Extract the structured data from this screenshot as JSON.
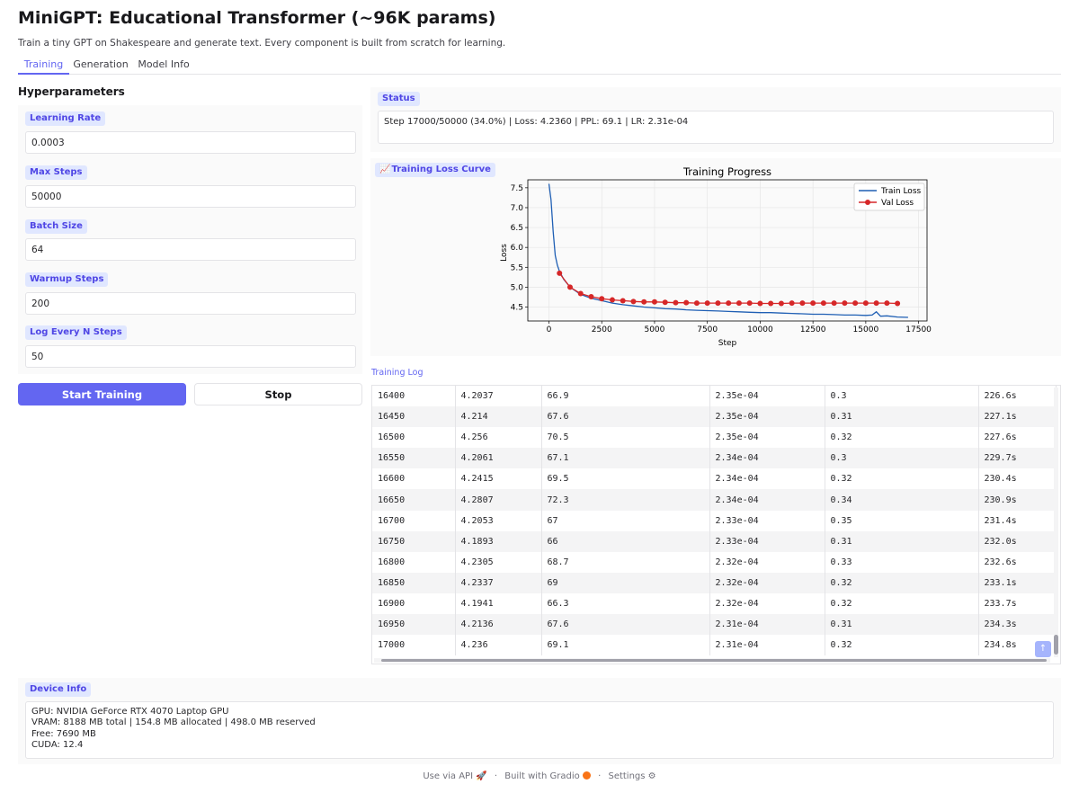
{
  "app": {
    "title": "MiniGPT: Educational Transformer (~96K params)",
    "subtitle": "Train a tiny GPT on Shakespeare and generate text. Every component is built from scratch for learning."
  },
  "tabs": [
    {
      "label": "Training",
      "active": true
    },
    {
      "label": "Generation",
      "active": false
    },
    {
      "label": "Model Info",
      "active": false
    }
  ],
  "hyperparameters": {
    "heading": "Hyperparameters",
    "fields": [
      {
        "label": "Learning Rate",
        "value": "0.0003"
      },
      {
        "label": "Max Steps",
        "value": "50000"
      },
      {
        "label": "Batch Size",
        "value": "64"
      },
      {
        "label": "Warmup Steps",
        "value": "200"
      },
      {
        "label": "Log Every N Steps",
        "value": "50"
      }
    ]
  },
  "buttons": {
    "start": "Start Training",
    "stop": "Stop"
  },
  "status": {
    "label": "Status",
    "text": "Step 17000/50000 (34.0%) | Loss: 4.2360 | PPL: 69.1 | LR: 2.31e-04"
  },
  "plot": {
    "label": "Training Loss Curve",
    "icon": "chart-icon"
  },
  "chart_data": {
    "type": "line",
    "title": "Training Progress",
    "xlabel": "Step",
    "ylabel": "Loss",
    "xlim": [
      -1000,
      17900
    ],
    "ylim": [
      4.15,
      7.7
    ],
    "xticks": [
      0,
      2500,
      5000,
      7500,
      10000,
      12500,
      15000,
      17500
    ],
    "yticks": [
      4.5,
      5.0,
      5.5,
      6.0,
      6.5,
      7.0,
      7.5
    ],
    "grid": true,
    "legend_position": "top-right",
    "series": [
      {
        "name": "Train Loss",
        "color": "#1f5fb4",
        "style": "line",
        "x": [
          0,
          100,
          200,
          300,
          400,
          500,
          700,
          1000,
          1500,
          2000,
          2500,
          3000,
          3500,
          4000,
          4500,
          5000,
          5500,
          6000,
          6500,
          7000,
          7500,
          8000,
          8500,
          9000,
          9500,
          10000,
          10500,
          11000,
          11500,
          12000,
          12500,
          13000,
          13500,
          14000,
          14500,
          15000,
          15300,
          15500,
          15700,
          16000,
          16500,
          17000
        ],
        "y": [
          7.6,
          7.2,
          6.4,
          5.8,
          5.55,
          5.4,
          5.2,
          5.0,
          4.82,
          4.72,
          4.66,
          4.6,
          4.56,
          4.53,
          4.5,
          4.48,
          4.46,
          4.45,
          4.43,
          4.42,
          4.41,
          4.4,
          4.39,
          4.38,
          4.37,
          4.36,
          4.36,
          4.35,
          4.34,
          4.33,
          4.32,
          4.32,
          4.31,
          4.3,
          4.3,
          4.29,
          4.3,
          4.38,
          4.27,
          4.28,
          4.25,
          4.24
        ]
      },
      {
        "name": "Val Loss",
        "color": "#d62728",
        "style": "line-markers",
        "x": [
          500,
          1000,
          1500,
          2000,
          2500,
          3000,
          3500,
          4000,
          4500,
          5000,
          5500,
          6000,
          6500,
          7000,
          7500,
          8000,
          8500,
          9000,
          9500,
          10000,
          10500,
          11000,
          11500,
          12000,
          12500,
          13000,
          13500,
          14000,
          14500,
          15000,
          15500,
          16000,
          16500
        ],
        "y": [
          5.35,
          5.0,
          4.84,
          4.76,
          4.71,
          4.68,
          4.66,
          4.64,
          4.63,
          4.63,
          4.62,
          4.61,
          4.61,
          4.6,
          4.6,
          4.6,
          4.6,
          4.6,
          4.6,
          4.59,
          4.59,
          4.59,
          4.6,
          4.6,
          4.6,
          4.6,
          4.6,
          4.6,
          4.6,
          4.6,
          4.6,
          4.6,
          4.59
        ]
      }
    ]
  },
  "training_log": {
    "label": "Training Log",
    "rows": [
      [
        "16400",
        "4.2037",
        "66.9",
        "2.35e-04",
        "0.3",
        "226.6s"
      ],
      [
        "16450",
        "4.214",
        "67.6",
        "2.35e-04",
        "0.31",
        "227.1s"
      ],
      [
        "16500",
        "4.256",
        "70.5",
        "2.35e-04",
        "0.32",
        "227.6s"
      ],
      [
        "16550",
        "4.2061",
        "67.1",
        "2.34e-04",
        "0.3",
        "229.7s"
      ],
      [
        "16600",
        "4.2415",
        "69.5",
        "2.34e-04",
        "0.32",
        "230.4s"
      ],
      [
        "16650",
        "4.2807",
        "72.3",
        "2.34e-04",
        "0.34",
        "230.9s"
      ],
      [
        "16700",
        "4.2053",
        "67",
        "2.33e-04",
        "0.35",
        "231.4s"
      ],
      [
        "16750",
        "4.1893",
        "66",
        "2.33e-04",
        "0.31",
        "232.0s"
      ],
      [
        "16800",
        "4.2305",
        "68.7",
        "2.32e-04",
        "0.33",
        "232.6s"
      ],
      [
        "16850",
        "4.2337",
        "69",
        "2.32e-04",
        "0.32",
        "233.1s"
      ],
      [
        "16900",
        "4.1941",
        "66.3",
        "2.32e-04",
        "0.32",
        "233.7s"
      ],
      [
        "16950",
        "4.2136",
        "67.6",
        "2.31e-04",
        "0.31",
        "234.3s"
      ],
      [
        "17000",
        "4.236",
        "69.1",
        "2.31e-04",
        "0.32",
        "234.8s"
      ]
    ]
  },
  "device": {
    "label": "Device Info",
    "lines": [
      "GPU: NVIDIA GeForce RTX 4070 Laptop GPU",
      "VRAM: 8188 MB total | 154.8 MB allocated | 498.0 MB reserved",
      "Free: 7690 MB",
      "CUDA: 12.4"
    ]
  },
  "footer": {
    "api": "Use via API",
    "api_icon": "🚀",
    "built": "Built with Gradio",
    "built_icon": "gradio-logo-icon",
    "settings": "Settings",
    "settings_icon": "gear-icon",
    "separator": "·"
  }
}
